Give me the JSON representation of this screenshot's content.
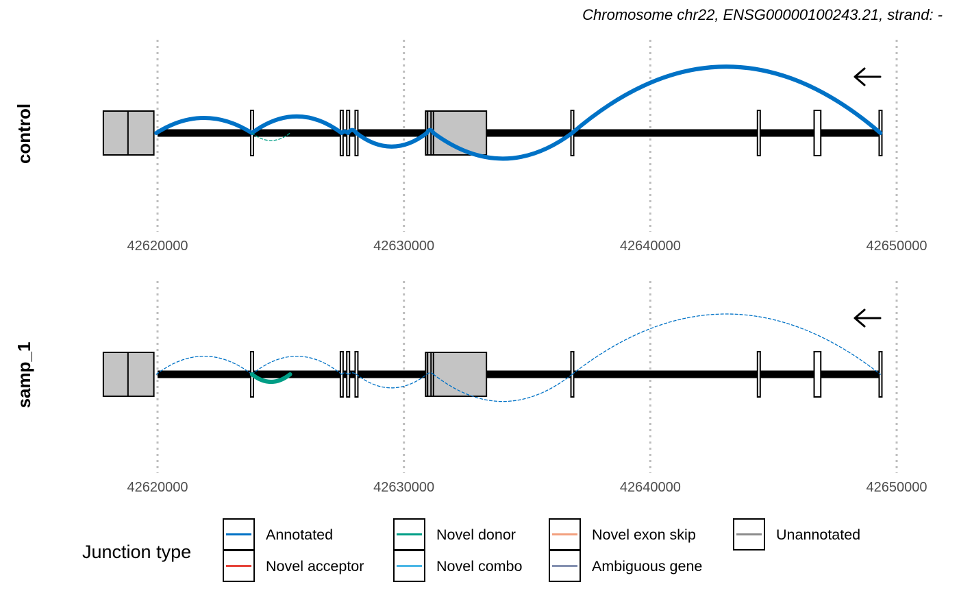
{
  "chart_data": {
    "type": "sashimi",
    "title": "",
    "subtitle": "Chromosome chr22, ENSG00000100243.21, strand: -",
    "strand_arrow": "left-arrow-icon",
    "xlim": [
      42617800,
      42651500
    ],
    "x_ticks": [
      {
        "value": 42620000,
        "label": "42620000"
      },
      {
        "value": 42630000,
        "label": "42630000"
      },
      {
        "value": 42640000,
        "label": "42640000"
      },
      {
        "value": 42650000,
        "label": "42650000"
      }
    ],
    "gridlines": "x-major-dotted",
    "intron_span": [
      42620000,
      42649350
    ],
    "exons": [
      {
        "start": 42617800,
        "end": 42619850,
        "height": "tall"
      },
      {
        "start": 42623780,
        "end": 42623880,
        "height": "small"
      },
      {
        "start": 42627420,
        "end": 42627520,
        "height": "small"
      },
      {
        "start": 42627680,
        "end": 42627780,
        "height": "small"
      },
      {
        "start": 42628020,
        "end": 42628120,
        "height": "small"
      },
      {
        "start": 42630880,
        "end": 42633350,
        "height": "tall"
      },
      {
        "start": 42636780,
        "end": 42636880,
        "height": "small"
      },
      {
        "start": 42644350,
        "end": 42644450,
        "height": "small"
      },
      {
        "start": 42646650,
        "end": 42646920,
        "height": "small"
      },
      {
        "start": 42649290,
        "end": 42649390,
        "height": "small"
      }
    ],
    "exon_dividers": [
      42618800,
      42630960,
      42631100,
      42631200
    ],
    "panels": [
      {
        "name": "control",
        "junctions": [
          {
            "start": 42619950,
            "end": 42623830,
            "side": "above",
            "type": "Annotated",
            "style": "thick",
            "peak": 1.0
          },
          {
            "start": 42623830,
            "end": 42627470,
            "side": "above",
            "type": "Annotated",
            "style": "thick",
            "peak": 1.1
          },
          {
            "start": 42627470,
            "end": 42627730,
            "side": "above",
            "type": "Annotated",
            "style": "thick",
            "peak": 0.1
          },
          {
            "start": 42627730,
            "end": 42628070,
            "side": "above",
            "type": "Annotated",
            "style": "thick",
            "peak": 0.2
          },
          {
            "start": 42628070,
            "end": 42630930,
            "side": "below",
            "type": "Annotated",
            "style": "thick",
            "peak": 0.9
          },
          {
            "start": 42630930,
            "end": 42631200,
            "side": "above",
            "type": "Annotated",
            "style": "thick",
            "peak": 0.2
          },
          {
            "start": 42631200,
            "end": 42636830,
            "side": "below",
            "type": "Annotated",
            "style": "thick",
            "peak": 1.7
          },
          {
            "start": 42636830,
            "end": 42649340,
            "side": "above",
            "type": "Annotated",
            "style": "thick",
            "peak": 4.4
          },
          {
            "start": 42623830,
            "end": 42625380,
            "side": "below",
            "type": "Novel donor",
            "style": "dashed",
            "peak": 0.5
          }
        ]
      },
      {
        "name": "samp_1",
        "junctions": [
          {
            "start": 42619950,
            "end": 42623830,
            "side": "above",
            "type": "Annotated",
            "style": "dashed",
            "peak": 1.2
          },
          {
            "start": 42623830,
            "end": 42627470,
            "side": "above",
            "type": "Annotated",
            "style": "dashed",
            "peak": 1.2
          },
          {
            "start": 42627470,
            "end": 42627730,
            "side": "above",
            "type": "Annotated",
            "style": "dashed",
            "peak": 0.1
          },
          {
            "start": 42627730,
            "end": 42628070,
            "side": "above",
            "type": "Annotated",
            "style": "dashed",
            "peak": 0.1
          },
          {
            "start": 42628070,
            "end": 42630930,
            "side": "below",
            "type": "Annotated",
            "style": "dashed",
            "peak": 0.9
          },
          {
            "start": 42630930,
            "end": 42631200,
            "side": "above",
            "type": "Annotated",
            "style": "dashed",
            "peak": 0.1
          },
          {
            "start": 42631200,
            "end": 42636830,
            "side": "below",
            "type": "Annotated",
            "style": "dashed",
            "peak": 1.8
          },
          {
            "start": 42636830,
            "end": 42649340,
            "side": "above",
            "type": "Annotated",
            "style": "dashed",
            "peak": 4.0
          },
          {
            "start": 42623830,
            "end": 42625380,
            "side": "below",
            "type": "Novel donor",
            "style": "thick",
            "peak": 0.5
          }
        ]
      }
    ],
    "legend": {
      "title": "Junction type",
      "position": "bottom",
      "items": [
        {
          "label": "Annotated",
          "color": "#0072C6"
        },
        {
          "label": "Novel acceptor",
          "color": "#E6443A"
        },
        {
          "label": "Novel donor",
          "color": "#009E86"
        },
        {
          "label": "Novel combo",
          "color": "#4BB7E6"
        },
        {
          "label": "Novel exon skip",
          "color": "#F2A07E"
        },
        {
          "label": "Ambiguous gene",
          "color": "#8490B0"
        },
        {
          "label": "Unannotated",
          "color": "#8C8C8C"
        }
      ]
    }
  }
}
